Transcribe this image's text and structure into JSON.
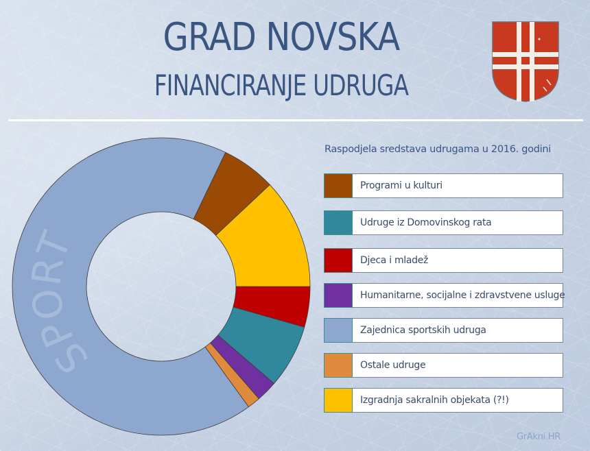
{
  "header": {
    "title": "GRAD NOVSKA",
    "subtitle": "FINANCIRANJE UDRUGA",
    "coat_of_arms": "novska-coat-of-arms-icon"
  },
  "legend": {
    "title": "Raspodjela sredstava udrugama u 2016. godini",
    "items": [
      {
        "label": "Programi u kulturi",
        "color": "#9a4a05"
      },
      {
        "label": "Udruge iz Domovinskog rata",
        "color": "#31889c"
      },
      {
        "label": "Djeca i mladež",
        "color": "#c00000"
      },
      {
        "label": "Humanitarne, socijalne i zdravstvene usluge",
        "color": "#7030a0"
      },
      {
        "label": "Zajednica sportskih udruga",
        "color": "#8ea7cf"
      },
      {
        "label": "Ostale udruge",
        "color": "#e08a3e"
      },
      {
        "label": "Izgradnja sakralnih objekata (?!)",
        "color": "#ffc000"
      }
    ]
  },
  "chart_data": {
    "type": "pie",
    "subtype": "donut",
    "title": "Raspodjela sredstava udrugama u 2016. godini",
    "annotation": "SPORT",
    "categories": [
      "Programi u kulturi",
      "Izgradnja sakralnih objekata (?!)",
      "Djeca i mladež",
      "Udruge iz Domovinskog rata",
      "Humanitarne, socijalne i zdravstvene usluge",
      "Ostale udruge",
      "Zajednica sportskih udruga"
    ],
    "values": [
      5.9,
      12.0,
      4.4,
      6.9,
      2.3,
      1.4,
      67.1
    ],
    "colors": [
      "#9a4a05",
      "#ffc000",
      "#c00000",
      "#31889c",
      "#7030a0",
      "#e08a3e",
      "#8ea7cf"
    ],
    "start_angle_deg": 25.6,
    "unit": "% (estimated from slice angles)",
    "legend_position": "right"
  },
  "footer": {
    "watermark": "GrAkni.HR"
  }
}
